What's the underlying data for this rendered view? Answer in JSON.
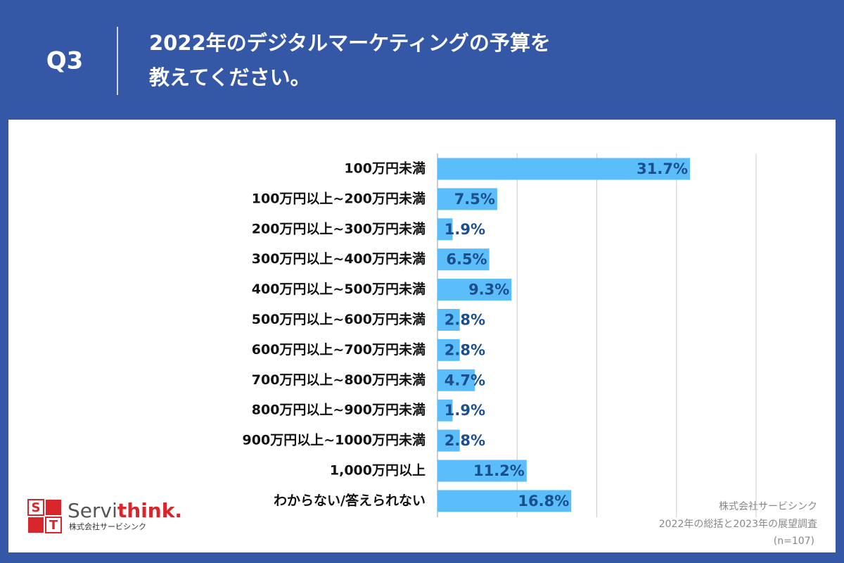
{
  "chart_data": {
    "type": "bar",
    "orientation": "horizontal",
    "question": "Q3",
    "title": [
      "2022年のデジタルマーケティングの予算を",
      "教えてください。"
    ],
    "categories": [
      "100万円未満",
      "100万円以上~200万円未満",
      "200万円以上~300万円未満",
      "300万円以上~400万円未満",
      "400万円以上~500万円未満",
      "500万円以上~600万円未満",
      "600万円以上~700万円未満",
      "700万円以上~800万円未満",
      "800万円以上~900万円未満",
      "900万円以上~1000万円未満",
      "1,000万円以上",
      "わからない/答えられない"
    ],
    "values": [
      31.7,
      7.5,
      1.9,
      6.5,
      9.3,
      2.8,
      2.8,
      4.7,
      1.9,
      2.8,
      11.2,
      16.8
    ],
    "value_labels": [
      "31.7%",
      "7.5%",
      "1.9%",
      "6.5%",
      "9.3%",
      "2.8%",
      "2.8%",
      "4.7%",
      "1.9%",
      "2.8%",
      "11.2%",
      "16.8%"
    ],
    "color": "#5bbdf9",
    "label_color": "#1b4f8c",
    "xlim": [
      0,
      40
    ],
    "xticks": [
      0,
      10,
      20,
      30,
      40
    ],
    "grid": true,
    "source": [
      "株式会社サービシンク",
      "2022年の総括と2023年の展望調査",
      "(n=107)"
    ],
    "logo": {
      "letters": [
        "S",
        "T"
      ],
      "brand": [
        "Servi",
        "think."
      ],
      "company": "株式会社サービシンク"
    }
  }
}
